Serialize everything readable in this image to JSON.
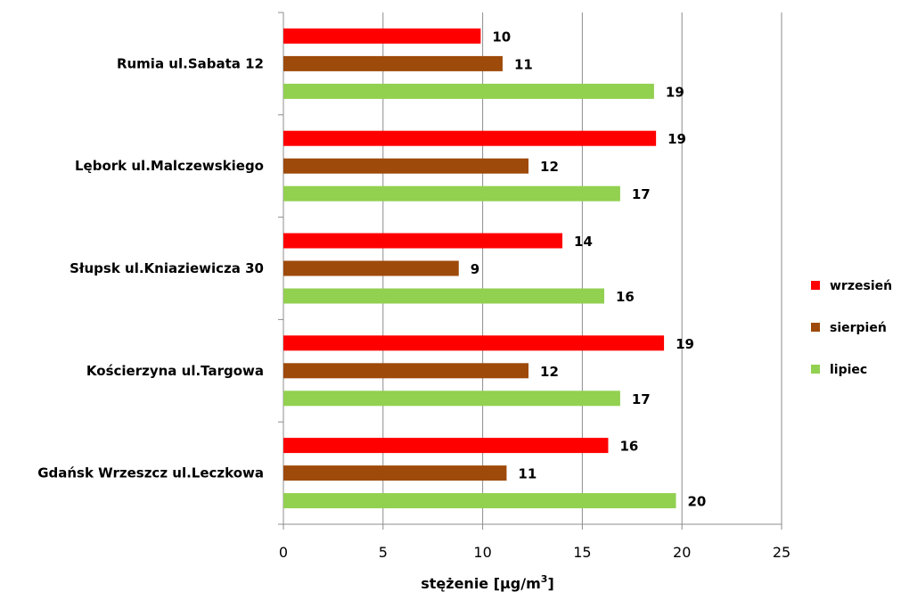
{
  "chart_data": {
    "type": "bar",
    "orientation": "horizontal",
    "categories": [
      "Rumia ul.Sabata 12",
      "Lębork ul.Malczewskiego",
      "Słupsk ul.Kniaziewicza 30",
      "Kościerzyna ul.Targowa",
      "Gdańsk Wrzeszcz ul.Leczkowa"
    ],
    "series": [
      {
        "name": "wrzesień",
        "color": "#ff0000",
        "values": [
          9.9,
          18.7,
          14.0,
          19.1,
          16.3
        ],
        "labels": [
          "10",
          "19",
          "14",
          "19",
          "16"
        ]
      },
      {
        "name": "sierpień",
        "color": "#9e4a0a",
        "values": [
          11.0,
          12.3,
          8.8,
          12.3,
          11.2
        ],
        "labels": [
          "11",
          "12",
          "9",
          "12",
          "11"
        ]
      },
      {
        "name": "lipiec",
        "color": "#92d050",
        "values": [
          18.6,
          16.9,
          16.1,
          16.9,
          19.7
        ],
        "labels": [
          "19",
          "17",
          "16",
          "17",
          "20"
        ]
      }
    ],
    "xlim": [
      0,
      25
    ],
    "xticks": [
      "0",
      "5",
      "10",
      "15",
      "20",
      "25"
    ],
    "xlabel_main": "stężenie [µg/m",
    "xlabel_sup": "3",
    "xlabel_end": "]",
    "grid": "vertical",
    "legend_position": "right"
  }
}
